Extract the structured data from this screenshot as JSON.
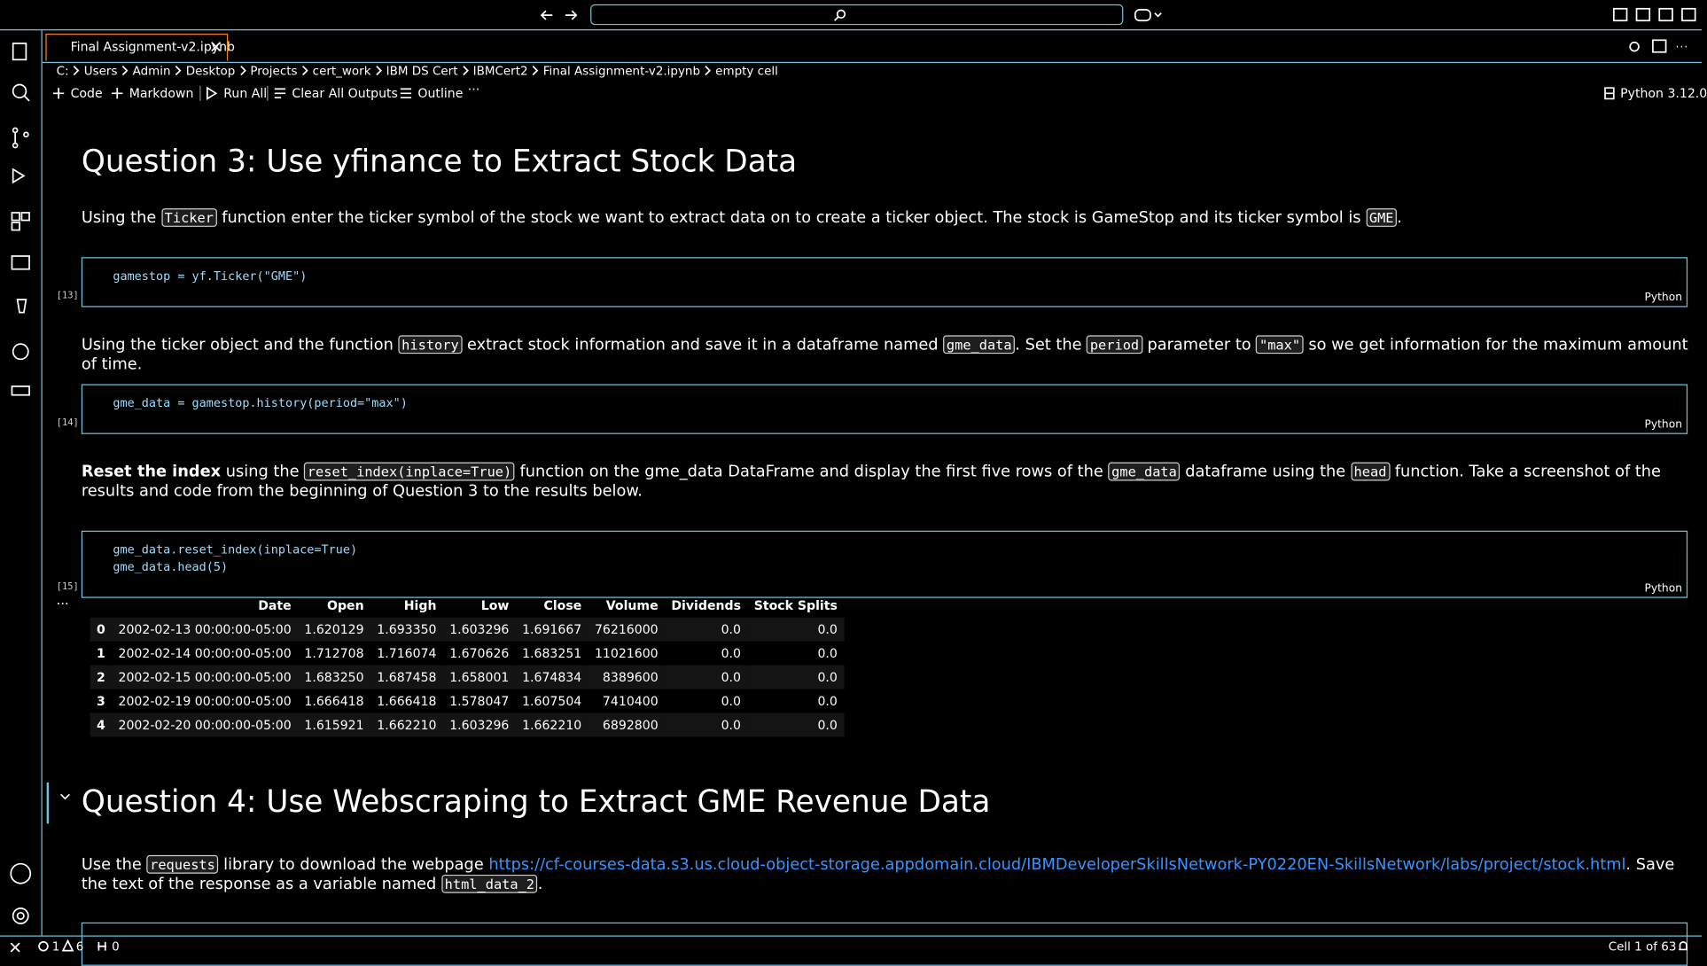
{
  "titlebar": {
    "search": "Search"
  },
  "tab": {
    "label": "Final Assignment-v2.ipynb"
  },
  "breadcrumb": [
    "C:",
    "Users",
    "Admin",
    "Desktop",
    "Projects",
    "cert_work",
    "IBM DS Cert",
    "IBMCert2",
    "Final Assignment-v2.ipynb",
    "empty cell"
  ],
  "toolbar": {
    "code": "Code",
    "markdown": "Markdown",
    "run_all": "Run All",
    "clear": "Clear All Outputs",
    "outline": "Outline",
    "more": "···",
    "kernel": "Python 3.12.0"
  },
  "cells": [
    {
      "heading": "Question 3: Use yfinance to Extract Stock Data"
    },
    {
      "segments": [
        {
          "text": "Using the "
        },
        {
          "code": "Ticker"
        },
        {
          "text": " function enter the ticker symbol of the stock we want to extract data on to create a ticker object. The stock is GameStop and its ticker symbol is "
        },
        {
          "code": "GME"
        },
        {
          "text": "."
        }
      ]
    },
    {
      "execution": "[13]",
      "language": "Python",
      "lines": [
        "gamestop = yf.Ticker(\"GME\")"
      ]
    },
    {
      "segments": [
        {
          "text": "Using the ticker object and the function "
        },
        {
          "code": "history"
        },
        {
          "text": " extract stock information and save it in a dataframe named "
        },
        {
          "code": "gme_data"
        },
        {
          "text": ". Set the "
        },
        {
          "code": "period"
        },
        {
          "text": " parameter to "
        },
        {
          "code": "\"max\""
        },
        {
          "text": " so we get information for the maximum amount of time."
        }
      ]
    },
    {
      "execution": "[14]",
      "language": "Python",
      "lines": [
        "gme_data = gamestop.history(period=\"max\")"
      ]
    },
    {
      "segments": [
        {
          "bold": "Reset the index"
        },
        {
          "text": " using the "
        },
        {
          "code": "reset_index(inplace=True)"
        },
        {
          "text": " function on the gme_data DataFrame and display the first five rows of the "
        },
        {
          "code": "gme_data"
        },
        {
          "text": " dataframe using the "
        },
        {
          "code": "head"
        },
        {
          "text": " function. Take a screenshot of the results and code from the beginning of Question 3 to the results below."
        }
      ]
    },
    {
      "execution": "[15]",
      "language": "Python",
      "lines": [
        "gme_data.reset_index(inplace=True)",
        "gme_data.head(5)"
      ]
    },
    {
      "output_marker": "...",
      "table": {
        "columns": [
          "",
          "Date",
          "Open",
          "High",
          "Low",
          "Close",
          "Volume",
          "Dividends",
          "Stock Splits"
        ],
        "rows": [
          [
            "0",
            "2002-02-13 00:00:00-05:00",
            "1.620129",
            "1.693350",
            "1.603296",
            "1.691667",
            "76216000",
            "0.0",
            "0.0"
          ],
          [
            "1",
            "2002-02-14 00:00:00-05:00",
            "1.712708",
            "1.716074",
            "1.670626",
            "1.683251",
            "11021600",
            "0.0",
            "0.0"
          ],
          [
            "2",
            "2002-02-15 00:00:00-05:00",
            "1.683250",
            "1.687458",
            "1.658001",
            "1.674834",
            "8389600",
            "0.0",
            "0.0"
          ],
          [
            "3",
            "2002-02-19 00:00:00-05:00",
            "1.666418",
            "1.666418",
            "1.578047",
            "1.607504",
            "7410400",
            "0.0",
            "0.0"
          ],
          [
            "4",
            "2002-02-20 00:00:00-05:00",
            "1.615921",
            "1.662210",
            "1.603296",
            "1.662210",
            "6892800",
            "0.0",
            "0.0"
          ]
        ]
      }
    },
    {
      "heading": "Question 4: Use Webscraping to Extract GME Revenue Data"
    },
    {
      "segments": [
        {
          "text": "Use the "
        },
        {
          "code": "requests"
        },
        {
          "text": " library to download the webpage "
        },
        {
          "link": "https://cf-courses-data.s3.us.cloud-object-storage.appdomain.cloud/IBMDeveloperSkillsNetwork-PY0220EN-SkillsNetwork/labs/project/stock.html"
        },
        {
          "text": ". Save the text of the response as a variable named "
        },
        {
          "code": "html_data_2"
        },
        {
          "text": "."
        }
      ]
    }
  ],
  "statusbar": {
    "errors": "1",
    "warnings": "6",
    "ports": "0",
    "cell": "Cell 1 of 63"
  }
}
